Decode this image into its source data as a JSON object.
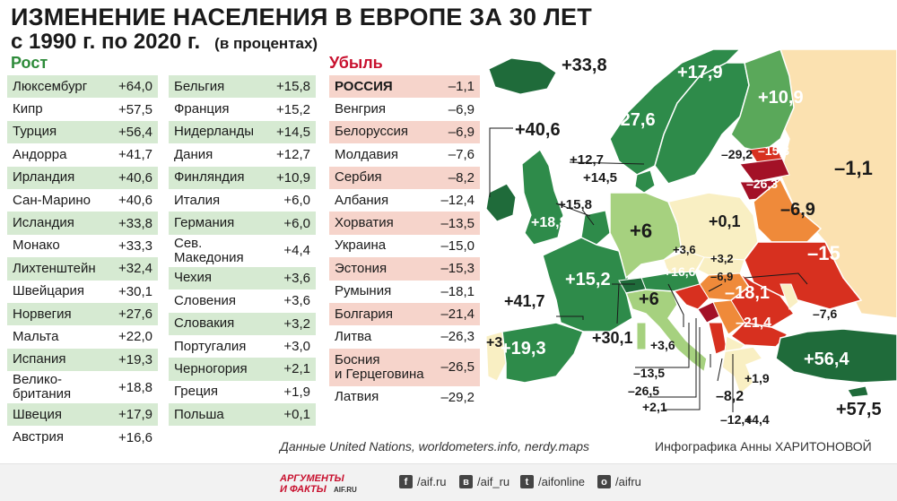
{
  "title_line1": "ИЗМЕНЕНИЕ НАСЕЛЕНИЯ В ЕВРОПЕ ЗА 30 ЛЕТ",
  "title_line2": "с 1990 г. по 2020 г.",
  "title_unit": "(в процентах)",
  "growth_header": "Рост",
  "decline_header": "Убыль",
  "growth_col1": [
    {
      "name": "Люксембург",
      "value": "+64,0"
    },
    {
      "name": "Кипр",
      "value": "+57,5"
    },
    {
      "name": "Турция",
      "value": "+56,4"
    },
    {
      "name": "Андорра",
      "value": "+41,7"
    },
    {
      "name": "Ирландия",
      "value": "+40,6"
    },
    {
      "name": "Сан-Марино",
      "value": "+40,6"
    },
    {
      "name": "Исландия",
      "value": "+33,8"
    },
    {
      "name": "Монако",
      "value": "+33,3"
    },
    {
      "name": "Лихтенштейн",
      "value": "+32,4"
    },
    {
      "name": "Швейцария",
      "value": "+30,1"
    },
    {
      "name": "Норвегия",
      "value": "+27,6"
    },
    {
      "name": "Мальта",
      "value": "+22,0"
    },
    {
      "name": "Испания",
      "value": "+19,3"
    },
    {
      "name": "Велико-\nбритания",
      "value": "+18,8"
    },
    {
      "name": "Швеция",
      "value": "+17,9"
    },
    {
      "name": "Австрия",
      "value": "+16,6"
    }
  ],
  "growth_col2": [
    {
      "name": "Бельгия",
      "value": "+15,8"
    },
    {
      "name": "Франция",
      "value": "+15,2"
    },
    {
      "name": "Нидерланды",
      "value": "+14,5"
    },
    {
      "name": "Дания",
      "value": "+12,7"
    },
    {
      "name": "Финляндия",
      "value": "+10,9"
    },
    {
      "name": "Италия",
      "value": "+6,0"
    },
    {
      "name": "Германия",
      "value": "+6,0"
    },
    {
      "name": "Сев.\nМакедония",
      "value": "+4,4"
    },
    {
      "name": "Чехия",
      "value": "+3,6"
    },
    {
      "name": "Словения",
      "value": "+3,6"
    },
    {
      "name": "Словакия",
      "value": "+3,2"
    },
    {
      "name": "Португалия",
      "value": "+3,0"
    },
    {
      "name": "Черногория",
      "value": "+2,1"
    },
    {
      "name": "Греция",
      "value": "+1,9"
    },
    {
      "name": "Польша",
      "value": "+0,1"
    }
  ],
  "decline": [
    {
      "name": "РОССИЯ",
      "value": "–1,1"
    },
    {
      "name": "Венгрия",
      "value": "–6,9"
    },
    {
      "name": "Белоруссия",
      "value": "–6,9"
    },
    {
      "name": "Молдавия",
      "value": "–7,6"
    },
    {
      "name": "Сербия",
      "value": "–8,2"
    },
    {
      "name": "Албания",
      "value": "–12,4"
    },
    {
      "name": "Хорватия",
      "value": "–13,5"
    },
    {
      "name": "Украина",
      "value": "–15,0"
    },
    {
      "name": "Эстония",
      "value": "–15,3"
    },
    {
      "name": "Румыния",
      "value": "–18,1"
    },
    {
      "name": "Болгария",
      "value": "–21,4"
    },
    {
      "name": "Литва",
      "value": "–26,3"
    },
    {
      "name": "Босния\nи Герцеговина",
      "value": "–26,5"
    },
    {
      "name": "Латвия",
      "value": "–29,2"
    }
  ],
  "map_labels": {
    "iceland": "+33,8",
    "norway": "+27,6",
    "sweden": "+17,9",
    "finland": "+10,9",
    "ireland": "+40,6",
    "uk": "+18,8",
    "denmark": "+12,7",
    "netherlands": "+14,5",
    "belgium": "+15,8",
    "france": "+15,2",
    "germany": "+6",
    "poland": "+0,1",
    "czech": "+3,6",
    "slovakia": "+3,2",
    "austria": "+16,6",
    "hungary": "–6,9",
    "switzerland": "+30,1",
    "italy": "+6",
    "slovenia": "+3,6",
    "portugal": "+3",
    "spain": "+19,3",
    "andorra": "+41,7",
    "latvia": "–29,2",
    "estonia": "–15,3",
    "lithuania": "–26,3",
    "belarus": "–6,9",
    "russia": "–1,1",
    "ukraine": "–15",
    "romania": "–18,1",
    "moldova": "–7,6",
    "bulgaria": "–21,4",
    "turkey": "+56,4",
    "cyprus": "+57,5",
    "croatia": "–13,5",
    "bosnia": "–26,5",
    "montenegro": "+2,1",
    "serbia": "–8,2",
    "albania": "–12,4",
    "macedonia": "+4,4",
    "greece": "+1,9"
  },
  "colors": {
    "dark_green": "#1f6b3a",
    "green": "#2e8b4a",
    "mid_green": "#5aa85a",
    "light_green": "#a6d17f",
    "cream": "#f9efc3",
    "peach": "#fbe1b0",
    "orange": "#ef8a3a",
    "red": "#d7301f",
    "dark_red": "#a31127"
  },
  "source": "Данные United Nations, worldometers.info, nerdy.maps",
  "credit": "Инфографика Анны ХАРИТОНОВОЙ",
  "footer": {
    "logo_line1": "АРГУМЕНТЫ",
    "logo_line2": "И ФАКТЫ",
    "logo_site": "AIF.RU",
    "social": [
      {
        "icon": "facebook-icon",
        "glyph": "f",
        "text": "/aif.ru"
      },
      {
        "icon": "vk-icon",
        "glyph": "в",
        "text": "/aif_ru"
      },
      {
        "icon": "twitter-icon",
        "glyph": "t",
        "text": "/aifonline"
      },
      {
        "icon": "odnoklassniki-icon",
        "glyph": "о",
        "text": "/aifru"
      }
    ]
  }
}
